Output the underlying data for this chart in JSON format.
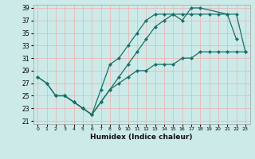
{
  "title": "",
  "xlabel": "Humidex (Indice chaleur)",
  "bg_color": "#cceae8",
  "grid_color": "#e8b8b8",
  "line_color": "#1a7068",
  "xlim": [
    -0.5,
    23.5
  ],
  "ylim": [
    20.5,
    39.5
  ],
  "xticks": [
    0,
    1,
    2,
    3,
    4,
    5,
    6,
    7,
    8,
    9,
    10,
    11,
    12,
    13,
    14,
    15,
    16,
    17,
    18,
    19,
    20,
    21,
    22,
    23
  ],
  "yticks": [
    21,
    23,
    25,
    27,
    29,
    31,
    33,
    35,
    37,
    39
  ],
  "line1_x": [
    0,
    1,
    2,
    3,
    4,
    5,
    6,
    7,
    8,
    9,
    10,
    11,
    12,
    13,
    14,
    15,
    16,
    17,
    18,
    21,
    22
  ],
  "line1_y": [
    28,
    27,
    25,
    25,
    24,
    23,
    22,
    26,
    30,
    31,
    33,
    35,
    37,
    38,
    38,
    38,
    37,
    39,
    39,
    38,
    34
  ],
  "line2_x": [
    0,
    1,
    2,
    3,
    4,
    5,
    6,
    7,
    8,
    9,
    10,
    11,
    12,
    13,
    14,
    15,
    16,
    17,
    18,
    19,
    20,
    21,
    22,
    23
  ],
  "line2_y": [
    28,
    27,
    25,
    25,
    24,
    23,
    22,
    24,
    26,
    28,
    30,
    32,
    34,
    36,
    37,
    38,
    38,
    38,
    38,
    38,
    38,
    38,
    38,
    32
  ],
  "line3_x": [
    2,
    3,
    4,
    5,
    6,
    7,
    8,
    9,
    10,
    11,
    12,
    13,
    14,
    15,
    16,
    17,
    18,
    19,
    20,
    21,
    22,
    23
  ],
  "line3_y": [
    25,
    25,
    24,
    23,
    22,
    24,
    26,
    27,
    28,
    29,
    29,
    30,
    30,
    30,
    31,
    31,
    32,
    32,
    32,
    32,
    32,
    32
  ]
}
